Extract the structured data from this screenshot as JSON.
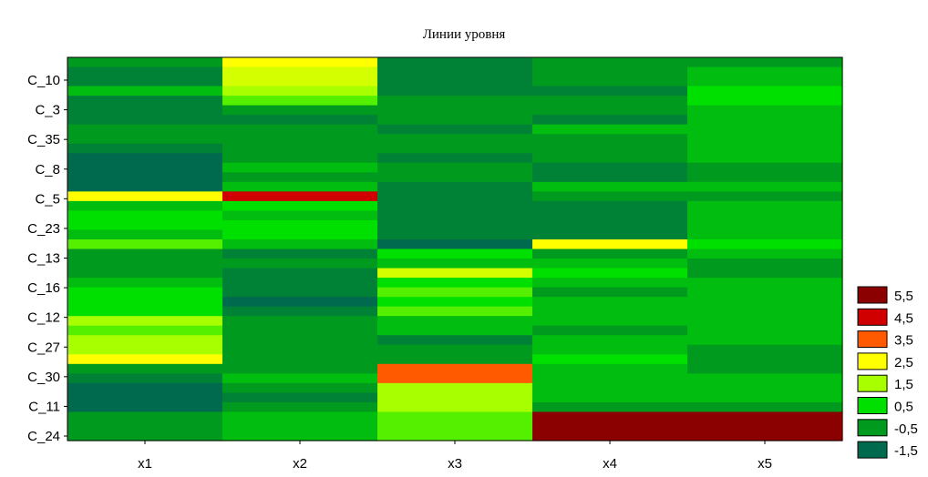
{
  "chart_data": {
    "type": "heatmap",
    "title": "Линии уровня",
    "xlabel": "",
    "ylabel": "",
    "columns": [
      "x1",
      "x2",
      "x3",
      "x4",
      "x5"
    ],
    "ytick_labels": [
      "C_10",
      "C_3",
      "C_35",
      "C_8",
      "C_5",
      "C_23",
      "C_13",
      "C_16",
      "C_12",
      "C_27",
      "C_30",
      "C_11",
      "C_24"
    ],
    "rows": 40,
    "legend_position": "right",
    "legend": [
      {
        "label": "5,5",
        "color": "#8b0000"
      },
      {
        "label": "4,5",
        "color": "#d00000"
      },
      {
        "label": "3,5",
        "color": "#ff5a00"
      },
      {
        "label": "2,5",
        "color": "#ffff00"
      },
      {
        "label": "1,5",
        "color": "#a8ff00"
      },
      {
        "label": "0,5",
        "color": "#00e000"
      },
      {
        "label": "-0,5",
        "color": "#009a1e"
      },
      {
        "label": "-1,5",
        "color": "#006a4e"
      }
    ],
    "values": [
      [
        -0.5,
        2.5,
        -1.0,
        -0.5,
        -0.5
      ],
      [
        -1.0,
        2.0,
        -1.0,
        -0.5,
        0.0
      ],
      [
        -1.0,
        2.0,
        -1.0,
        -0.5,
        0.0
      ],
      [
        0.0,
        1.5,
        -1.0,
        -1.0,
        0.5
      ],
      [
        -1.0,
        1.0,
        -0.5,
        -0.5,
        0.5
      ],
      [
        -1.0,
        -0.5,
        -0.5,
        -0.5,
        0.0
      ],
      [
        -1.0,
        -1.0,
        -0.5,
        -1.0,
        0.0
      ],
      [
        -0.5,
        -0.5,
        -1.0,
        0.0,
        0.0
      ],
      [
        -0.5,
        -0.5,
        -0.5,
        -0.5,
        0.0
      ],
      [
        -1.0,
        -0.5,
        -0.5,
        -0.5,
        0.0
      ],
      [
        -1.5,
        -0.5,
        -1.0,
        -0.5,
        0.0
      ],
      [
        -1.5,
        0.0,
        -0.5,
        -1.0,
        -0.5
      ],
      [
        -1.5,
        -0.5,
        -0.5,
        -1.0,
        -0.5
      ],
      [
        -1.5,
        0.0,
        -1.0,
        0.0,
        0.0
      ],
      [
        2.5,
        4.5,
        -1.0,
        -0.5,
        -0.5
      ],
      [
        0.0,
        0.5,
        -1.0,
        -1.0,
        0.0
      ],
      [
        0.5,
        0.0,
        -1.0,
        -1.0,
        0.0
      ],
      [
        0.5,
        0.5,
        -1.0,
        -1.0,
        0.0
      ],
      [
        0.0,
        0.5,
        -1.0,
        -1.0,
        0.0
      ],
      [
        1.0,
        0.0,
        -1.5,
        2.5,
        0.5
      ],
      [
        -0.5,
        -1.0,
        0.5,
        -0.5,
        0.0
      ],
      [
        -0.5,
        -0.5,
        0.0,
        0.0,
        -0.5
      ],
      [
        -0.5,
        -1.0,
        2.0,
        0.5,
        -0.5
      ],
      [
        0.0,
        -1.0,
        0.5,
        0.0,
        0.0
      ],
      [
        0.5,
        -1.0,
        1.0,
        -0.5,
        0.0
      ],
      [
        0.5,
        -1.5,
        0.5,
        0.0,
        0.0
      ],
      [
        0.5,
        -1.0,
        1.0,
        0.0,
        0.0
      ],
      [
        1.5,
        -0.5,
        0.0,
        0.0,
        0.0
      ],
      [
        1.0,
        -0.5,
        0.0,
        -0.5,
        0.0
      ],
      [
        1.5,
        -0.5,
        -1.0,
        0.0,
        0.0
      ],
      [
        1.5,
        -0.5,
        -0.5,
        0.0,
        -0.5
      ],
      [
        2.5,
        -0.5,
        -0.5,
        0.5,
        -0.5
      ],
      [
        -0.5,
        -0.5,
        3.5,
        0.0,
        -0.5
      ],
      [
        -1.0,
        0.0,
        3.5,
        0.0,
        0.0
      ],
      [
        -1.5,
        -0.5,
        1.5,
        0.0,
        0.0
      ],
      [
        -1.5,
        -1.0,
        1.5,
        0.0,
        0.0
      ],
      [
        -1.5,
        -0.5,
        1.5,
        -0.5,
        -0.5
      ],
      [
        -0.5,
        0.0,
        1.0,
        5.5,
        5.5
      ],
      [
        -0.5,
        0.0,
        1.0,
        5.5,
        5.5
      ],
      [
        -0.5,
        0.0,
        1.0,
        5.5,
        5.5
      ]
    ]
  }
}
